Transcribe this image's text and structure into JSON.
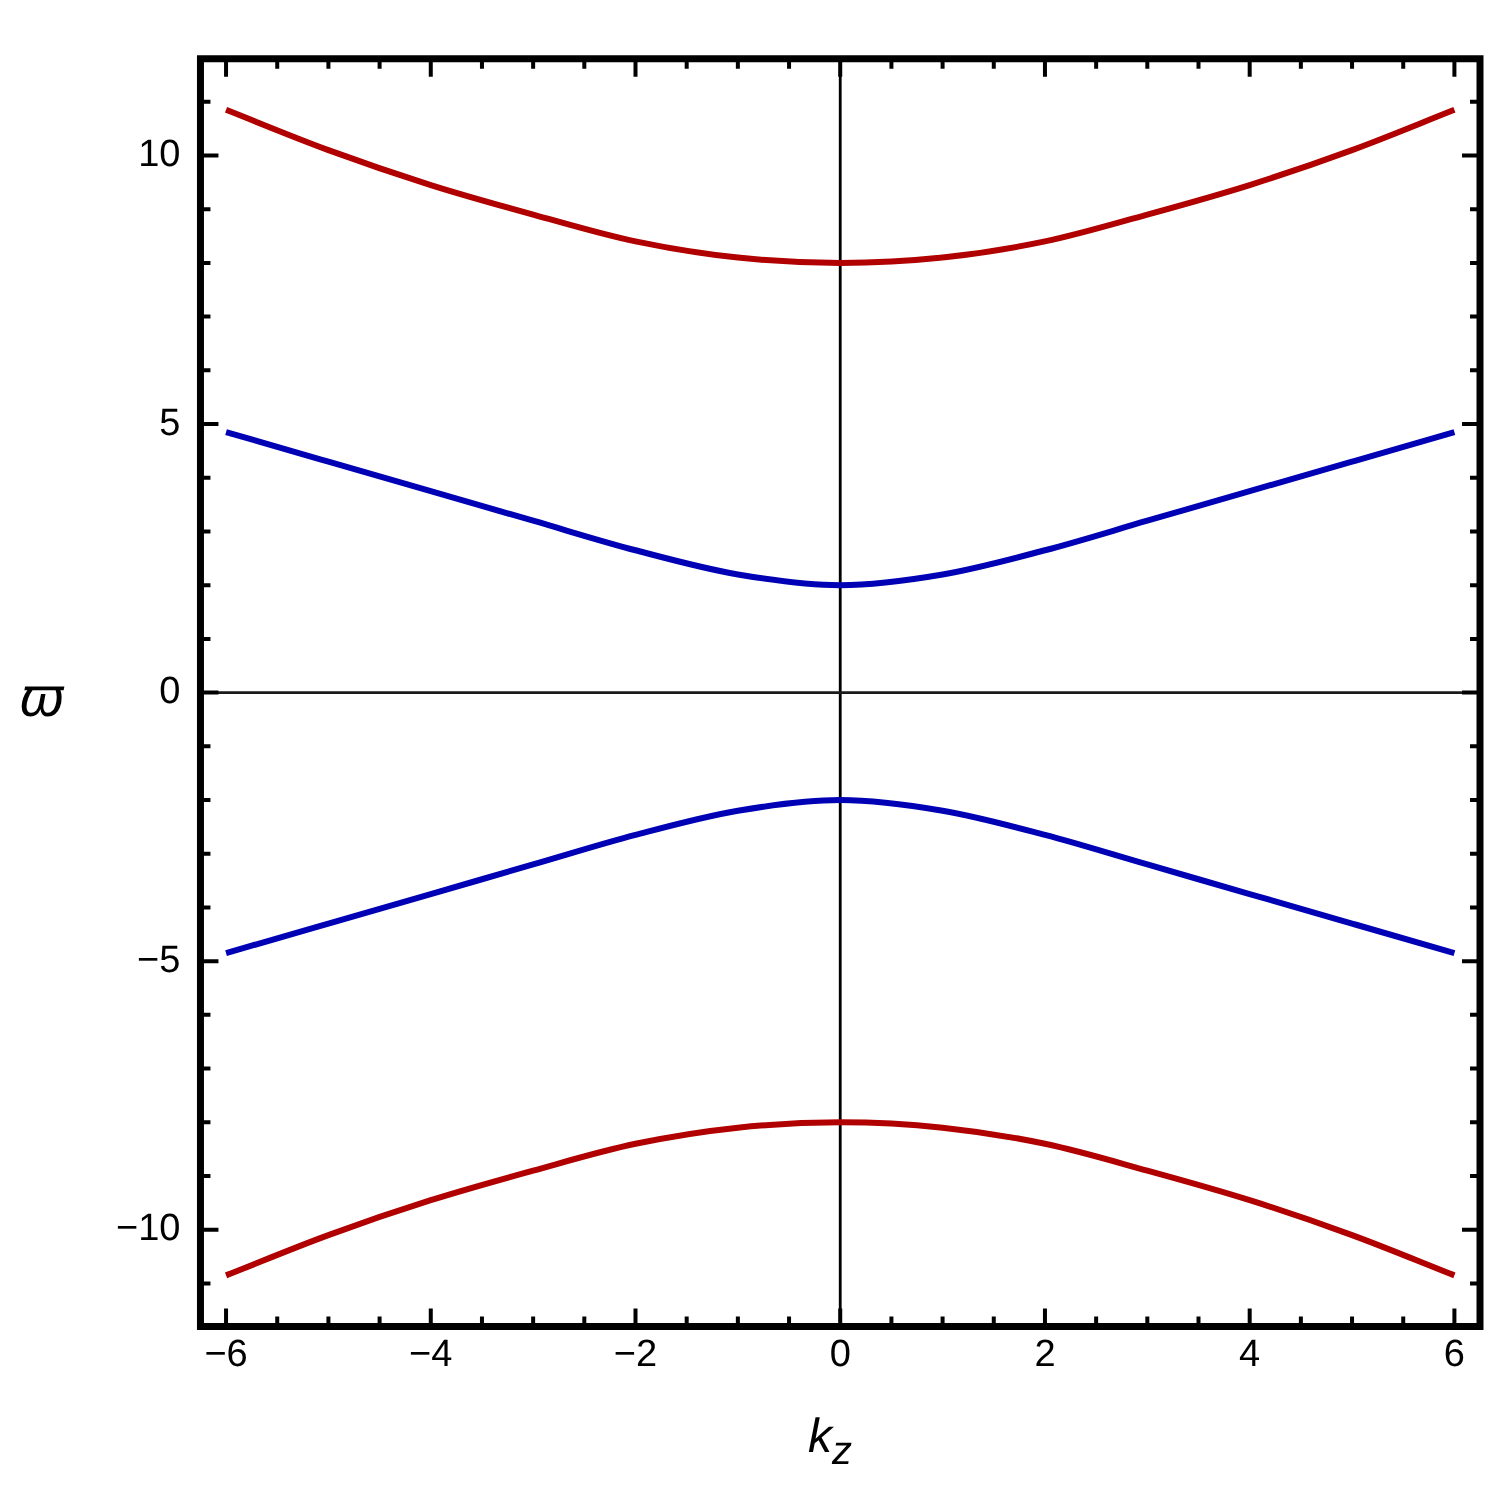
{
  "chart_data": {
    "type": "line",
    "xlabel": "k$_{z}$",
    "ylabel": "ϖ",
    "x": [
      -6,
      -5,
      -4,
      -3,
      -2,
      -1,
      0,
      1,
      2,
      3,
      4,
      5,
      6
    ],
    "series": [
      {
        "color": "#b00000",
        "values": [
          10.85,
          10.1,
          9.45,
          8.9,
          8.4,
          8.1,
          8,
          8.1,
          8.4,
          8.9,
          9.45,
          10.1,
          10.85
        ]
      },
      {
        "color": "#0000b4",
        "values": [
          4.85,
          4.3,
          3.75,
          3.2,
          2.65,
          2.2,
          2,
          2.2,
          2.65,
          3.2,
          3.75,
          4.3,
          4.85
        ]
      },
      {
        "color": "#0000b4",
        "values": [
          -4.85,
          -4.3,
          -3.75,
          -3.2,
          -2.65,
          -2.2,
          -2,
          -2.2,
          -2.65,
          -3.2,
          -3.75,
          -4.3,
          -4.85
        ]
      },
      {
        "color": "#b00000",
        "values": [
          -10.85,
          -10.1,
          -9.45,
          -8.9,
          -8.4,
          -8.1,
          -8,
          -8.1,
          -8.4,
          -8.9,
          -9.45,
          -10.1,
          -10.85
        ]
      }
    ],
    "xlim": [
      -6.25,
      6.25
    ],
    "ylim": [
      -11.8,
      11.8
    ],
    "xticks": [
      {
        "value": -6,
        "label": "−6"
      },
      {
        "value": -5.5,
        "label": null
      },
      {
        "value": -5,
        "label": null
      },
      {
        "value": -4.5,
        "label": null
      },
      {
        "value": -4,
        "label": "−4"
      },
      {
        "value": -3.5,
        "label": null
      },
      {
        "value": -3,
        "label": null
      },
      {
        "value": -2.5,
        "label": null
      },
      {
        "value": -2,
        "label": "−2"
      },
      {
        "value": -1.5,
        "label": null
      },
      {
        "value": -1,
        "label": null
      },
      {
        "value": -0.5,
        "label": null
      },
      0,
      {
        "value": 0.5,
        "label": null
      },
      {
        "value": 1,
        "label": null
      },
      {
        "value": 1.5,
        "label": null
      },
      2,
      {
        "value": 2.5,
        "label": null
      },
      {
        "value": 3,
        "label": null
      },
      {
        "value": 3.5,
        "label": null
      },
      4,
      {
        "value": 4.5,
        "label": null
      },
      {
        "value": 5,
        "label": null
      },
      {
        "value": 5.5,
        "label": null
      },
      6
    ],
    "yticks": [
      {
        "value": -11,
        "label": null
      },
      {
        "value": -10,
        "label": "−10"
      },
      {
        "value": -9,
        "label": null
      },
      {
        "value": -8,
        "label": null
      },
      {
        "value": -7,
        "label": null
      },
      {
        "value": -6,
        "label": null
      },
      {
        "value": -5,
        "label": "−5"
      },
      {
        "value": -4,
        "label": null
      },
      {
        "value": -3,
        "label": null
      },
      {
        "value": -2,
        "label": null
      },
      {
        "value": -1,
        "label": null
      },
      0,
      {
        "value": 1,
        "label": null
      },
      {
        "value": 2,
        "label": null
      },
      {
        "value": 3,
        "label": null
      },
      {
        "value": 4,
        "label": null
      },
      5,
      {
        "value": 6,
        "label": null
      },
      {
        "value": 7,
        "label": null
      },
      {
        "value": 8,
        "label": null
      },
      {
        "value": 9,
        "label": null
      },
      10,
      {
        "value": 11,
        "label": null
      }
    ],
    "ref_lines": [
      {
        "axis": "x",
        "value": 0,
        "color": "#000000"
      },
      {
        "axis": "y",
        "value": 0,
        "color": "#1a1a1a"
      }
    ],
    "grid": false,
    "legend": false,
    "marker": "none",
    "line_style": "solid"
  }
}
